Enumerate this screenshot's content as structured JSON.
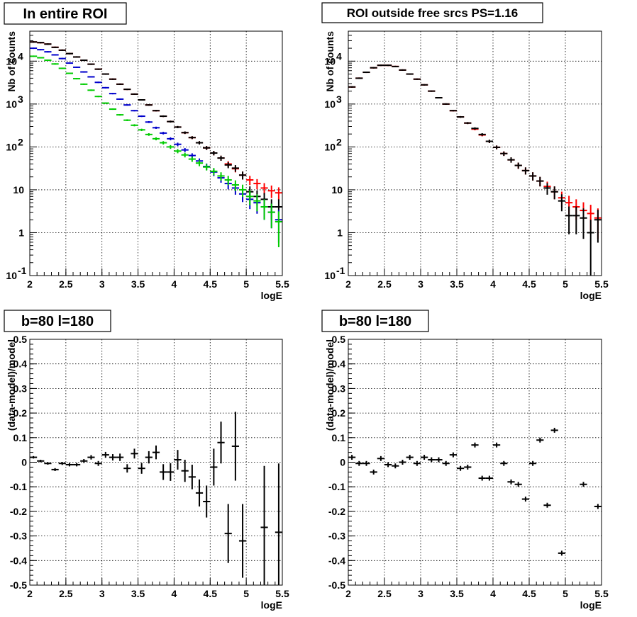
{
  "chart_data": [
    {
      "type": "scatter",
      "title": "In entire ROI",
      "xlabel": "logE",
      "ylabel": "Nb of counts",
      "xlim": [
        2,
        5.5
      ],
      "ylim": [
        0.1,
        50000
      ],
      "yscale": "log",
      "grid": true,
      "x_ticks": [
        "2",
        "2.5",
        "3",
        "3.5",
        "4",
        "4.5",
        "5",
        "5.5"
      ],
      "y_ticks": [
        "10^-1",
        "1",
        "10",
        "10^2",
        "10^3",
        "10^4"
      ],
      "series": [
        {
          "color": "#ff0000",
          "x": [
            2.05,
            2.15,
            2.25,
            2.35,
            2.45,
            2.55,
            2.65,
            2.75,
            2.85,
            2.95,
            3.05,
            3.15,
            3.25,
            3.35,
            3.45,
            3.55,
            3.65,
            3.75,
            3.85,
            3.95,
            4.05,
            4.15,
            4.25,
            4.35,
            4.45,
            4.55,
            4.65,
            4.75,
            4.85,
            4.95,
            5.05,
            5.15,
            5.25,
            5.35,
            5.45
          ],
          "y": [
            28000,
            27000,
            25000,
            21000,
            18000,
            15000,
            12500,
            10500,
            8500,
            6500,
            5000,
            3800,
            2900,
            2200,
            1700,
            1250,
            950,
            700,
            520,
            390,
            290,
            215,
            165,
            125,
            95,
            72,
            55,
            40,
            31,
            22,
            17,
            14,
            11,
            9.5,
            8.5
          ]
        },
        {
          "color": "#000000",
          "x": [
            2.05,
            2.15,
            2.25,
            2.35,
            2.45,
            2.55,
            2.65,
            2.75,
            2.85,
            2.95,
            3.05,
            3.15,
            3.25,
            3.35,
            3.45,
            3.55,
            3.65,
            3.75,
            3.85,
            3.95,
            4.05,
            4.15,
            4.25,
            4.35,
            4.45,
            4.55,
            4.65,
            4.75,
            4.85,
            4.95,
            5.05,
            5.15,
            5.25,
            5.35,
            5.45
          ],
          "y": [
            28000,
            27000,
            25000,
            21000,
            18000,
            15000,
            12500,
            10500,
            8500,
            6500,
            5000,
            3800,
            2900,
            2200,
            1700,
            1250,
            950,
            700,
            520,
            390,
            290,
            215,
            165,
            125,
            95,
            72,
            55,
            38,
            32,
            22,
            9,
            7,
            6,
            4,
            4
          ]
        },
        {
          "color": "#0000cc",
          "x": [
            2.05,
            2.15,
            2.25,
            2.35,
            2.45,
            2.55,
            2.65,
            2.75,
            2.85,
            2.95,
            3.05,
            3.15,
            3.25,
            3.35,
            3.45,
            3.55,
            3.65,
            3.75,
            3.85,
            3.95,
            4.05,
            4.15,
            4.25,
            4.35,
            4.45,
            4.55,
            4.65,
            4.75,
            4.85,
            4.95,
            5.05,
            5.15,
            5.25,
            5.35,
            5.45
          ],
          "y": [
            20000,
            18500,
            16500,
            14000,
            11500,
            9000,
            7200,
            5600,
            4300,
            3200,
            2400,
            1750,
            1300,
            950,
            700,
            520,
            380,
            280,
            210,
            155,
            115,
            85,
            63,
            47,
            35,
            26,
            19,
            14,
            11,
            8,
            6,
            5,
            4,
            3,
            2
          ]
        },
        {
          "color": "#00cc00",
          "x": [
            2.05,
            2.15,
            2.25,
            2.35,
            2.45,
            2.55,
            2.65,
            2.75,
            2.85,
            2.95,
            3.05,
            3.15,
            3.25,
            3.35,
            3.45,
            3.55,
            3.65,
            3.75,
            3.85,
            3.95,
            4.05,
            4.15,
            4.25,
            4.35,
            4.45,
            4.55,
            4.65,
            4.75,
            4.85,
            4.95,
            5.05,
            5.15,
            5.25,
            5.35,
            5.45
          ],
          "y": [
            13000,
            12000,
            10500,
            8600,
            6800,
            5200,
            3900,
            2900,
            2100,
            1500,
            1050,
            760,
            560,
            420,
            320,
            250,
            195,
            155,
            125,
            100,
            80,
            65,
            52,
            42,
            34,
            27,
            21,
            17,
            13,
            10,
            7,
            5.5,
            4,
            3,
            1.8
          ]
        }
      ]
    },
    {
      "type": "scatter",
      "title": "ROI outside free srcs PS=1.16",
      "xlabel": "logE",
      "ylabel": "Nb of counts",
      "xlim": [
        2,
        5.5
      ],
      "ylim": [
        0.1,
        50000
      ],
      "yscale": "log",
      "grid": true,
      "x_ticks": [
        "2",
        "2.5",
        "3",
        "3.5",
        "4",
        "4.5",
        "5",
        "5.5"
      ],
      "y_ticks": [
        "10^-1",
        "1",
        "10",
        "10^2",
        "10^3",
        "10^4"
      ],
      "series": [
        {
          "color": "#ff0000",
          "x": [
            2.05,
            2.15,
            2.25,
            2.35,
            2.45,
            2.55,
            2.65,
            2.75,
            2.85,
            2.95,
            3.05,
            3.15,
            3.25,
            3.35,
            3.45,
            3.55,
            3.65,
            3.75,
            3.85,
            3.95,
            4.05,
            4.15,
            4.25,
            4.35,
            4.45,
            4.55,
            4.65,
            4.75,
            4.85,
            4.95,
            5.05,
            5.15,
            5.25,
            5.35,
            5.45
          ],
          "y": [
            2500,
            4000,
            5500,
            7000,
            8000,
            8000,
            7500,
            6200,
            5000,
            3800,
            2800,
            2000,
            1400,
            1000,
            700,
            500,
            360,
            260,
            190,
            135,
            98,
            70,
            50,
            37,
            28,
            21,
            16,
            12,
            9,
            6.5,
            5,
            4,
            3.3,
            2.8,
            2.2
          ]
        },
        {
          "color": "#000000",
          "x": [
            2.05,
            2.15,
            2.25,
            2.35,
            2.45,
            2.55,
            2.65,
            2.75,
            2.85,
            2.95,
            3.05,
            3.15,
            3.25,
            3.35,
            3.45,
            3.55,
            3.65,
            3.75,
            3.85,
            3.95,
            4.05,
            4.15,
            4.25,
            4.35,
            4.45,
            4.55,
            4.65,
            4.75,
            4.85,
            4.95,
            5.05,
            5.15,
            5.25,
            5.35,
            5.45
          ],
          "y": [
            2500,
            4000,
            5500,
            7000,
            8000,
            8000,
            7500,
            6200,
            5000,
            3800,
            2800,
            2000,
            1400,
            1000,
            700,
            500,
            360,
            270,
            195,
            135,
            98,
            70,
            50,
            37,
            28,
            21,
            16,
            11,
            9,
            5.5,
            2.5,
            2.5,
            2.2,
            1,
            2
          ]
        }
      ]
    },
    {
      "type": "scatter",
      "title": "b=80 l=180",
      "xlabel": "logE",
      "ylabel": "(data-model)/model",
      "xlim": [
        2,
        5.5
      ],
      "ylim": [
        -0.5,
        0.5
      ],
      "grid": true,
      "x_ticks": [
        "2",
        "2.5",
        "3",
        "3.5",
        "4",
        "4.5",
        "5",
        "5.5"
      ],
      "y_ticks": [
        "-0.5",
        "-0.4",
        "-0.3",
        "-0.2",
        "-0.1",
        "0",
        "0.1",
        "0.2",
        "0.3",
        "0.4",
        "0.5"
      ],
      "series": [
        {
          "color": "#000000",
          "x": [
            2.05,
            2.15,
            2.25,
            2.35,
            2.45,
            2.55,
            2.65,
            2.75,
            2.85,
            2.95,
            3.05,
            3.15,
            3.25,
            3.35,
            3.45,
            3.55,
            3.65,
            3.75,
            3.85,
            3.95,
            4.05,
            4.15,
            4.25,
            4.35,
            4.45,
            4.55,
            4.65,
            4.75,
            4.85,
            4.95,
            5.25,
            5.45
          ],
          "y": [
            0.02,
            0.005,
            -0.005,
            -0.03,
            -0.005,
            -0.01,
            -0.01,
            0.005,
            0.02,
            -0.005,
            0.03,
            0.02,
            0.02,
            -0.025,
            0.035,
            -0.025,
            0.02,
            0.04,
            -0.04,
            -0.04,
            0.01,
            -0.035,
            -0.06,
            -0.125,
            -0.16,
            -0.02,
            0.08,
            -0.29,
            0.065,
            -0.32,
            -0.265,
            -0.285
          ],
          "err": [
            0.005,
            0.005,
            0.005,
            0.006,
            0.006,
            0.007,
            0.007,
            0.008,
            0.009,
            0.01,
            0.012,
            0.013,
            0.015,
            0.017,
            0.02,
            0.022,
            0.025,
            0.028,
            0.032,
            0.036,
            0.04,
            0.045,
            0.05,
            0.055,
            0.065,
            0.075,
            0.085,
            0.12,
            0.14,
            0.15,
            0.25,
            0.28
          ]
        }
      ]
    },
    {
      "type": "scatter",
      "title": "b=80 l=180",
      "xlabel": "logE",
      "ylabel": "(data-model)/model",
      "xlim": [
        2,
        5.5
      ],
      "ylim": [
        -0.5,
        0.5
      ],
      "grid": true,
      "x_ticks": [
        "2",
        "2.5",
        "3",
        "3.5",
        "4",
        "4.5",
        "5",
        "5.5"
      ],
      "y_ticks": [
        "-0.5",
        "-0.4",
        "-0.3",
        "-0.2",
        "-0.1",
        "0",
        "0.1",
        "0.2",
        "0.3",
        "0.4",
        "0.5"
      ],
      "series": [
        {
          "color": "#000000",
          "x": [
            2.05,
            2.15,
            2.25,
            2.35,
            2.45,
            2.55,
            2.65,
            2.75,
            2.85,
            2.95,
            3.05,
            3.15,
            3.25,
            3.35,
            3.45,
            3.55,
            3.65,
            3.75,
            3.85,
            3.95,
            4.05,
            4.15,
            4.25,
            4.35,
            4.45,
            4.55,
            4.65,
            4.75,
            4.85,
            4.95,
            5.25,
            5.45
          ],
          "y": [
            0.02,
            -0.005,
            -0.005,
            -0.04,
            0.015,
            -0.01,
            -0.015,
            0.0,
            0.02,
            -0.005,
            0.02,
            0.01,
            0.01,
            -0.005,
            0.03,
            -0.025,
            -0.02,
            0.07,
            -0.065,
            -0.065,
            0.07,
            -0.005,
            -0.08,
            -0.09,
            -0.15,
            -0.005,
            0.09,
            -0.175,
            0.13,
            -0.37,
            -0.09,
            -0.18
          ]
        }
      ]
    }
  ]
}
